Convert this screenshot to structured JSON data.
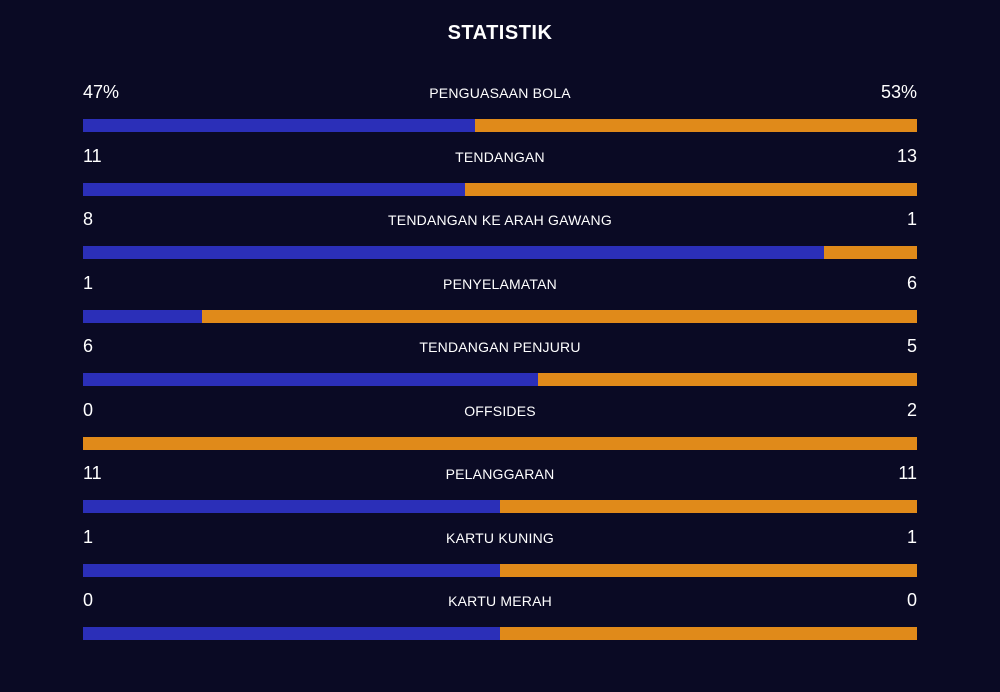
{
  "title": "STATISTIK",
  "colors": {
    "home": "#2b2fb8",
    "away": "#e08a1a",
    "background": "#0a0a24"
  },
  "stats": [
    {
      "label": "PENGUASAAN BOLA",
      "home": "47%",
      "away": "53%",
      "home_share": 0.47
    },
    {
      "label": "TENDANGAN",
      "home": "11",
      "away": "13",
      "home_share": 0.458
    },
    {
      "label": "TENDANGAN KE ARAH GAWANG",
      "home": "8",
      "away": "1",
      "home_share": 0.889
    },
    {
      "label": "PENYELAMATAN",
      "home": "1",
      "away": "6",
      "home_share": 0.143
    },
    {
      "label": "TENDANGAN PENJURU",
      "home": "6",
      "away": "5",
      "home_share": 0.545
    },
    {
      "label": "OFFSIDES",
      "home": "0",
      "away": "2",
      "home_share": 0
    },
    {
      "label": "PELANGGARAN",
      "home": "11",
      "away": "11",
      "home_share": 0.5
    },
    {
      "label": "KARTU KUNING",
      "home": "1",
      "away": "1",
      "home_share": 0.5
    },
    {
      "label": "KARTU MERAH",
      "home": "0",
      "away": "0",
      "home_share": 0.5
    }
  ]
}
